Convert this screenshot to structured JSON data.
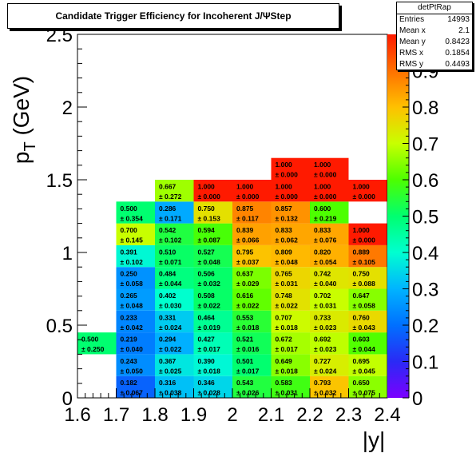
{
  "title": "Candidate Trigger Efficiency for Incoherent J/ΨStep",
  "stats": {
    "name": "detPtRap",
    "rows": [
      {
        "label": "Entries",
        "value": "14993"
      },
      {
        "label": "Mean x",
        "value": "2.1"
      },
      {
        "label": "Mean y",
        "value": "0.8423"
      },
      {
        "label": "RMS x",
        "value": "0.1854"
      },
      {
        "label": "RMS y",
        "value": "0.4493"
      }
    ]
  },
  "colors": {
    "frame": "#000000",
    "background": "#ffffff"
  },
  "chart_data": {
    "type": "heatmap",
    "title": "Candidate Trigger Efficiency for Incoherent J/ΨStep",
    "xlabel": "|y|",
    "ylabel": "p_T (GeV)",
    "xlim": [
      1.6,
      2.4
    ],
    "ylim": [
      0,
      2.5
    ],
    "zlim": [
      0,
      1
    ],
    "x_ticks": [
      "1.6",
      "1.7",
      "1.8",
      "1.9",
      "2",
      "2.1",
      "2.2",
      "2.3",
      "2.4"
    ],
    "y_ticks": [
      "0",
      "0.5",
      "1",
      "1.5",
      "2",
      "2.5"
    ],
    "z_ticks": [
      "0",
      "0.1",
      "0.2",
      "0.3",
      "0.4",
      "0.5",
      "0.6",
      "0.7",
      "0.8",
      "0.9"
    ],
    "x_bin_width": 0.1,
    "y_bin_width": 0.15,
    "cells": [
      {
        "x": 1.7,
        "y": 0.0,
        "value": "0.182",
        "error": "± 0.067"
      },
      {
        "x": 1.8,
        "y": 0.0,
        "value": "0.316",
        "error": "± 0.038"
      },
      {
        "x": 1.9,
        "y": 0.0,
        "value": "0.346",
        "error": "± 0.028"
      },
      {
        "x": 2.0,
        "y": 0.0,
        "value": "0.543",
        "error": "± 0.026"
      },
      {
        "x": 2.1,
        "y": 0.0,
        "value": "0.583",
        "error": "± 0.031"
      },
      {
        "x": 2.2,
        "y": 0.0,
        "value": "0.793",
        "error": "± 0.032"
      },
      {
        "x": 2.3,
        "y": 0.0,
        "value": "0.650",
        "error": "± 0.075"
      },
      {
        "x": 1.7,
        "y": 0.15,
        "value": "0.243",
        "error": "± 0.050"
      },
      {
        "x": 1.8,
        "y": 0.15,
        "value": "0.367",
        "error": "± 0.025"
      },
      {
        "x": 1.9,
        "y": 0.15,
        "value": "0.390",
        "error": "± 0.018"
      },
      {
        "x": 2.0,
        "y": 0.15,
        "value": "0.501",
        "error": "± 0.017"
      },
      {
        "x": 2.1,
        "y": 0.15,
        "value": "0.649",
        "error": "± 0.018"
      },
      {
        "x": 2.2,
        "y": 0.15,
        "value": "0.727",
        "error": "± 0.024"
      },
      {
        "x": 2.3,
        "y": 0.15,
        "value": "0.695",
        "error": "± 0.045"
      },
      {
        "x": 1.6,
        "y": 0.3,
        "value": "0.500",
        "error": "± 0.250"
      },
      {
        "x": 1.7,
        "y": 0.3,
        "value": "0.219",
        "error": "± 0.040"
      },
      {
        "x": 1.8,
        "y": 0.3,
        "value": "0.294",
        "error": "± 0.022"
      },
      {
        "x": 1.9,
        "y": 0.3,
        "value": "0.427",
        "error": "± 0.017"
      },
      {
        "x": 2.0,
        "y": 0.3,
        "value": "0.521",
        "error": "± 0.016"
      },
      {
        "x": 2.1,
        "y": 0.3,
        "value": "0.672",
        "error": "± 0.017"
      },
      {
        "x": 2.2,
        "y": 0.3,
        "value": "0.692",
        "error": "± 0.023"
      },
      {
        "x": 2.3,
        "y": 0.3,
        "value": "0.603",
        "error": "± 0.044"
      },
      {
        "x": 1.7,
        "y": 0.45,
        "value": "0.233",
        "error": "± 0.042"
      },
      {
        "x": 1.8,
        "y": 0.45,
        "value": "0.331",
        "error": "± 0.024"
      },
      {
        "x": 1.9,
        "y": 0.45,
        "value": "0.464",
        "error": "± 0.019"
      },
      {
        "x": 2.0,
        "y": 0.45,
        "value": "0.553",
        "error": "± 0.018"
      },
      {
        "x": 2.1,
        "y": 0.45,
        "value": "0.707",
        "error": "± 0.018"
      },
      {
        "x": 2.2,
        "y": 0.45,
        "value": "0.733",
        "error": "± 0.023"
      },
      {
        "x": 2.3,
        "y": 0.45,
        "value": "0.760",
        "error": "± 0.043"
      },
      {
        "x": 1.7,
        "y": 0.6,
        "value": "0.265",
        "error": "± 0.048"
      },
      {
        "x": 1.8,
        "y": 0.6,
        "value": "0.402",
        "error": "± 0.030"
      },
      {
        "x": 1.9,
        "y": 0.6,
        "value": "0.508",
        "error": "± 0.022"
      },
      {
        "x": 2.0,
        "y": 0.6,
        "value": "0.616",
        "error": "± 0.022"
      },
      {
        "x": 2.1,
        "y": 0.6,
        "value": "0.748",
        "error": "± 0.022"
      },
      {
        "x": 2.2,
        "y": 0.6,
        "value": "0.702",
        "error": "± 0.031"
      },
      {
        "x": 2.3,
        "y": 0.6,
        "value": "0.647",
        "error": "± 0.058"
      },
      {
        "x": 1.7,
        "y": 0.75,
        "value": "0.250",
        "error": "± 0.058"
      },
      {
        "x": 1.8,
        "y": 0.75,
        "value": "0.484",
        "error": "± 0.044"
      },
      {
        "x": 1.9,
        "y": 0.75,
        "value": "0.506",
        "error": "± 0.032"
      },
      {
        "x": 2.0,
        "y": 0.75,
        "value": "0.637",
        "error": "± 0.029"
      },
      {
        "x": 2.1,
        "y": 0.75,
        "value": "0.765",
        "error": "± 0.031"
      },
      {
        "x": 2.2,
        "y": 0.75,
        "value": "0.742",
        "error": "± 0.040"
      },
      {
        "x": 2.3,
        "y": 0.75,
        "value": "0.750",
        "error": "± 0.088"
      },
      {
        "x": 1.7,
        "y": 0.9,
        "value": "0.391",
        "error": "± 0.102"
      },
      {
        "x": 1.8,
        "y": 0.9,
        "value": "0.510",
        "error": "± 0.071"
      },
      {
        "x": 1.9,
        "y": 0.9,
        "value": "0.527",
        "error": "± 0.048"
      },
      {
        "x": 2.0,
        "y": 0.9,
        "value": "0.795",
        "error": "± 0.037"
      },
      {
        "x": 2.1,
        "y": 0.9,
        "value": "0.809",
        "error": "± 0.048"
      },
      {
        "x": 2.2,
        "y": 0.9,
        "value": "0.820",
        "error": "± 0.054"
      },
      {
        "x": 2.3,
        "y": 0.9,
        "value": "0.889",
        "error": "± 0.105"
      },
      {
        "x": 1.7,
        "y": 1.05,
        "value": "0.700",
        "error": "± 0.145"
      },
      {
        "x": 1.8,
        "y": 1.05,
        "value": "0.542",
        "error": "± 0.102"
      },
      {
        "x": 1.9,
        "y": 1.05,
        "value": "0.594",
        "error": "± 0.087"
      },
      {
        "x": 2.0,
        "y": 1.05,
        "value": "0.839",
        "error": "± 0.066"
      },
      {
        "x": 2.1,
        "y": 1.05,
        "value": "0.833",
        "error": "± 0.062"
      },
      {
        "x": 2.2,
        "y": 1.05,
        "value": "0.833",
        "error": "± 0.076"
      },
      {
        "x": 2.3,
        "y": 1.05,
        "value": "1.000",
        "error": "± 0.000"
      },
      {
        "x": 1.7,
        "y": 1.2,
        "value": "0.500",
        "error": "± 0.354"
      },
      {
        "x": 1.8,
        "y": 1.2,
        "value": "0.286",
        "error": "± 0.171"
      },
      {
        "x": 1.9,
        "y": 1.2,
        "value": "0.750",
        "error": "± 0.153"
      },
      {
        "x": 2.0,
        "y": 1.2,
        "value": "0.875",
        "error": "± 0.117"
      },
      {
        "x": 2.1,
        "y": 1.2,
        "value": "0.857",
        "error": "± 0.132"
      },
      {
        "x": 2.2,
        "y": 1.2,
        "value": "0.600",
        "error": "± 0.219"
      },
      {
        "x": 1.8,
        "y": 1.35,
        "value": "0.667",
        "error": "± 0.272"
      },
      {
        "x": 1.9,
        "y": 1.35,
        "value": "1.000",
        "error": "± 0.000"
      },
      {
        "x": 2.0,
        "y": 1.35,
        "value": "1.000",
        "error": "± 0.000"
      },
      {
        "x": 2.1,
        "y": 1.35,
        "value": "1.000",
        "error": "± 0.000"
      },
      {
        "x": 2.2,
        "y": 1.35,
        "value": "1.000",
        "error": "± 0.000"
      },
      {
        "x": 2.3,
        "y": 1.35,
        "value": "1.000",
        "error": "± 0.000"
      },
      {
        "x": 2.1,
        "y": 1.5,
        "value": "1.000",
        "error": "± 0.000"
      },
      {
        "x": 2.2,
        "y": 1.5,
        "value": "1.000",
        "error": "± 0.000"
      }
    ]
  }
}
